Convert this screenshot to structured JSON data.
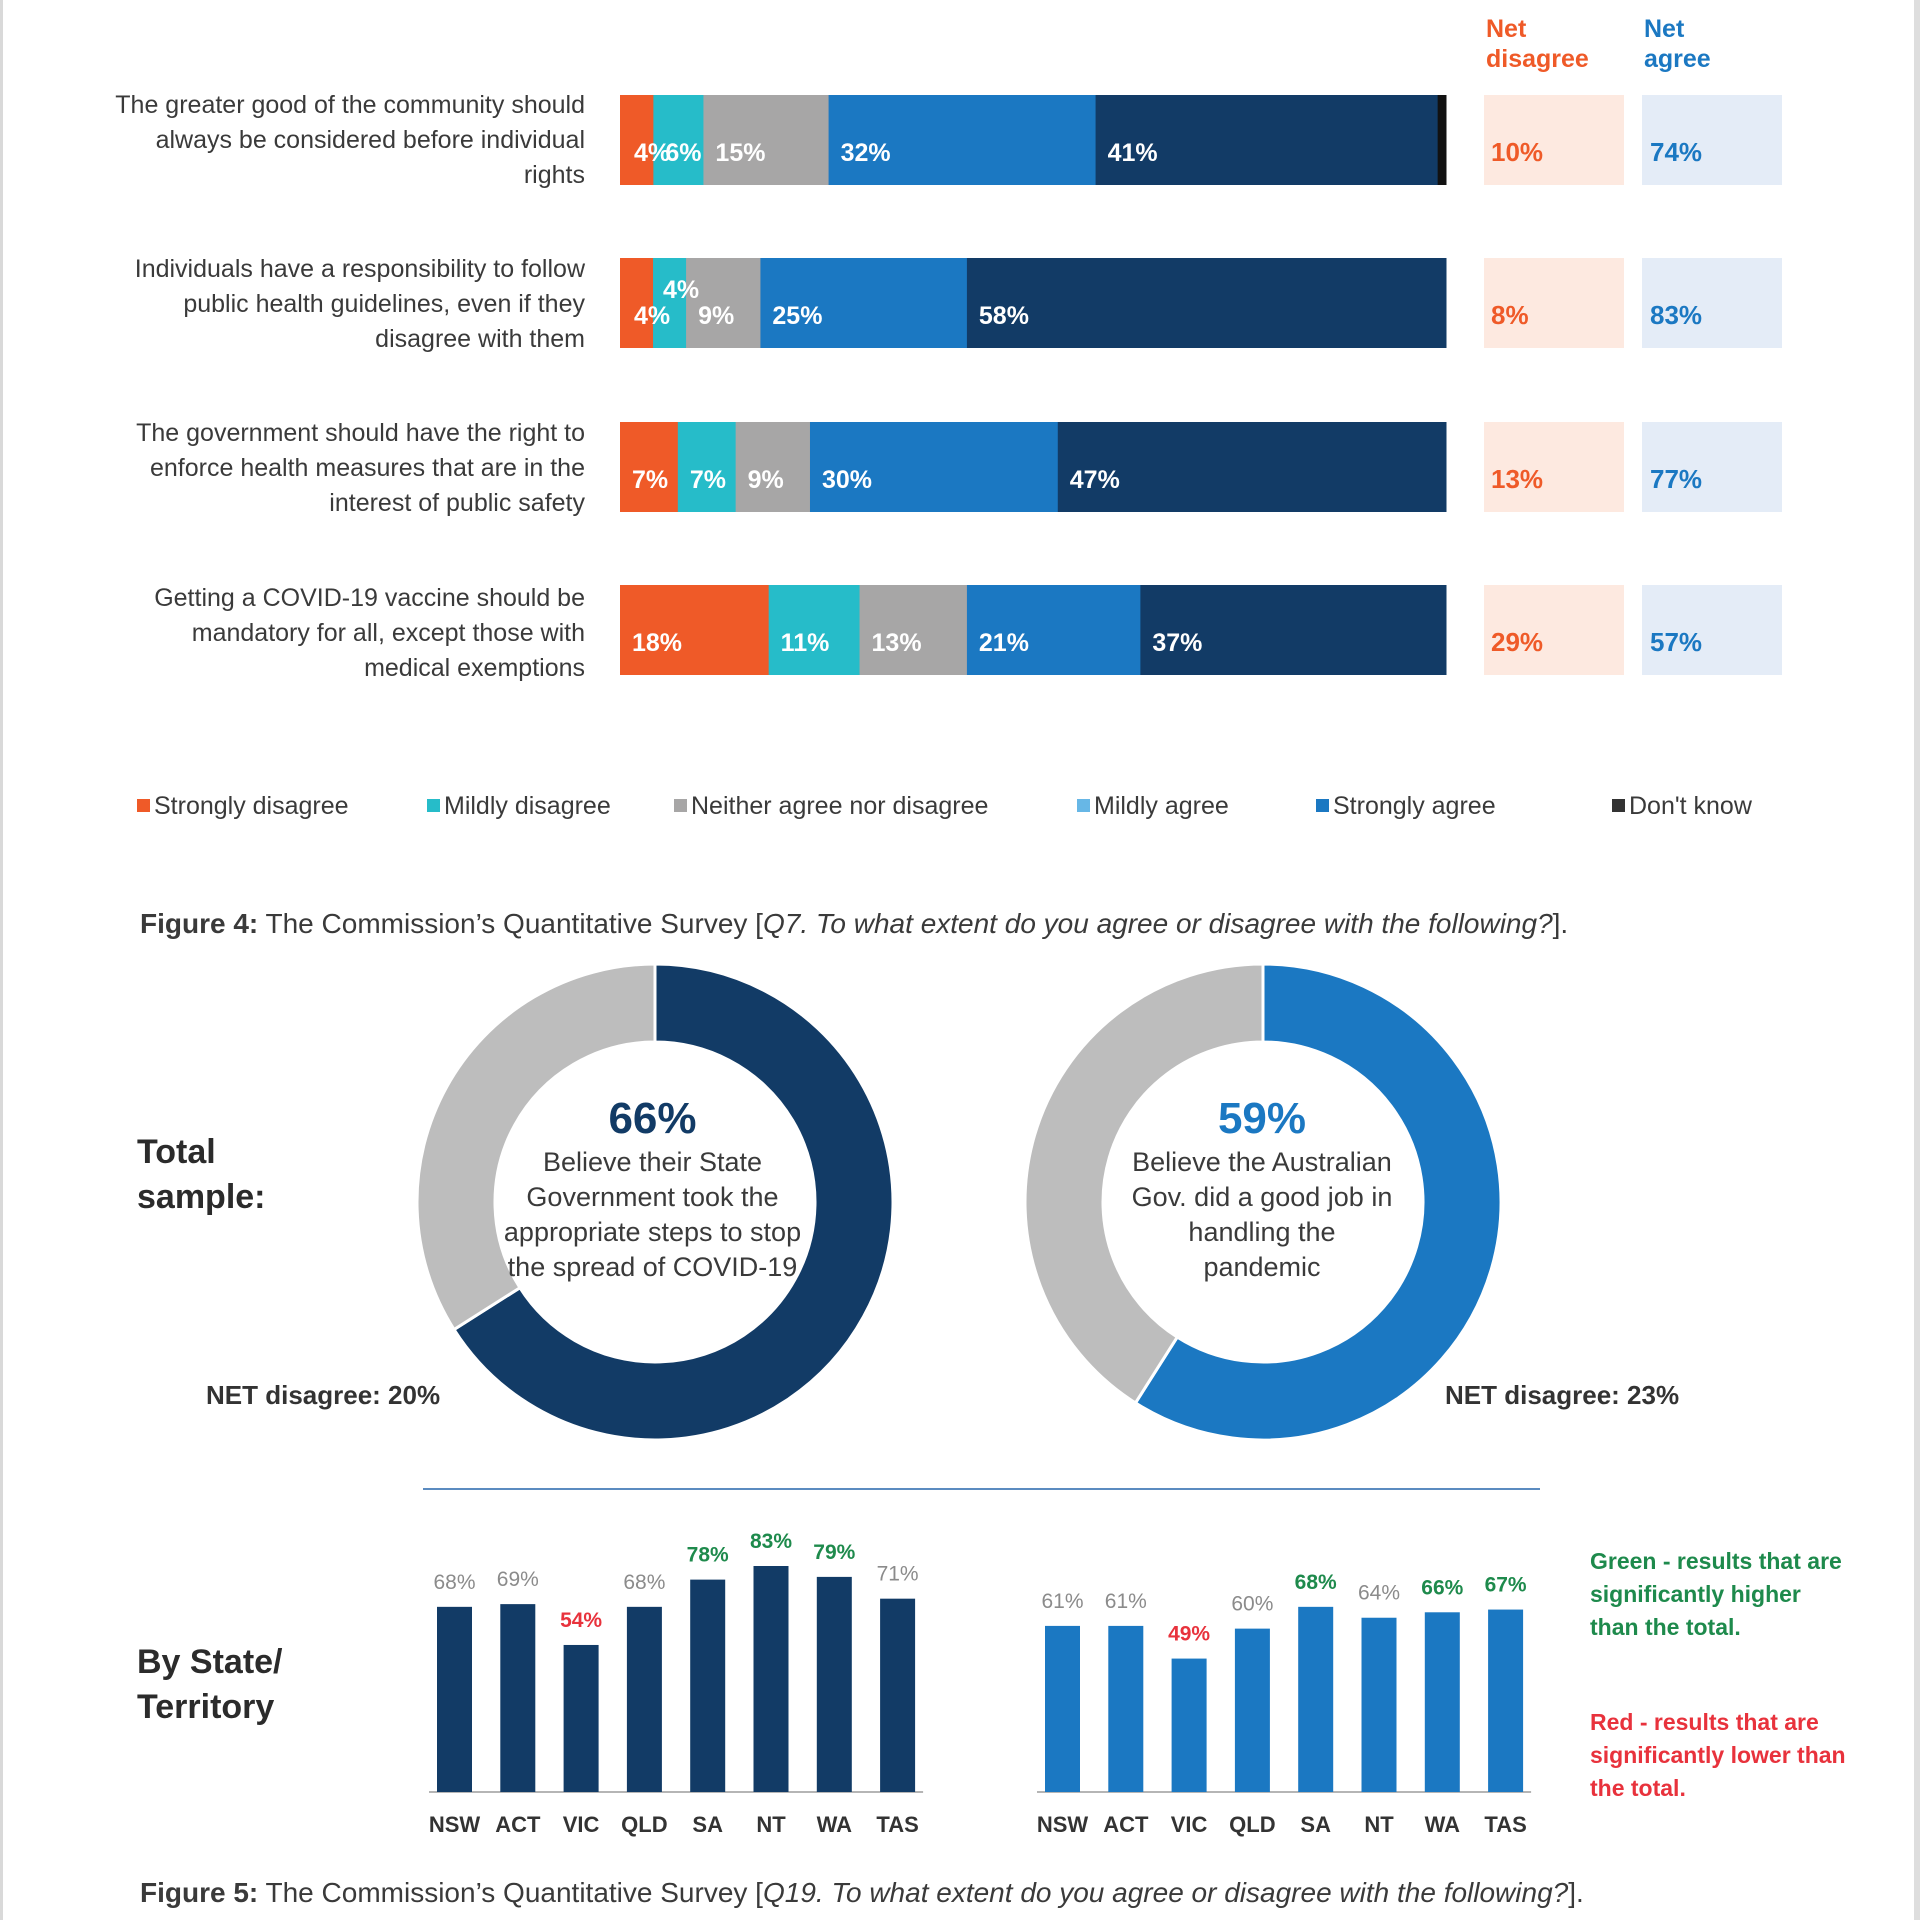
{
  "page": {
    "background": "#ffffff"
  },
  "colors": {
    "strongly_disagree": "#ef5a28",
    "mildly_disagree": "#26bcc9",
    "neither": "#a7a6a6",
    "mildly_agree": "#1b78c2",
    "strongly_agree": "#123b66",
    "dont_know": "#111111",
    "net_disagree_text": "#ef5a28",
    "net_disagree_bg": "#fde9e0",
    "net_agree_text": "#1b78c2",
    "net_agree_bg": "#e4ecf7",
    "donut_grey": "#bdbdbd",
    "green_sig": "#1e8a4c",
    "red_sig": "#e8323c",
    "bar_label_grey": "#8b8b8b",
    "divider": "#5b8bc0"
  },
  "figure4": {
    "net_disagree_header": "Net disagree",
    "net_agree_header": "Net agree",
    "caption_bold": "Figure 4:",
    "caption_text": " The Commission’s Quantitative Survey [",
    "caption_italic": "Q7. To what extent do you agree or disagree with the following?",
    "caption_end": "]."
  },
  "figure5": {
    "total_sample_label": "Total sample:",
    "by_state_label": "By State/ Territory",
    "donut1": {
      "pct": "66%",
      "text": "Believe their State Government took the appropriate steps to stop the spread of COVID-19",
      "net_disagree": "NET disagree: 20%"
    },
    "donut2": {
      "pct": "59%",
      "text": "Believe the Australian Gov. did a good job in handling the pandemic",
      "net_disagree": "NET disagree: 23%"
    },
    "note_green": "Green - results that are significantly higher than the total.",
    "note_red": "Red - results that are significantly lower than the total.",
    "caption_bold": "Figure 5:",
    "caption_text": " The Commission’s Quantitative Survey [",
    "caption_italic": "Q19. To what extent do you agree or disagree with the following?",
    "caption_end": "]."
  },
  "chart_data": [
    {
      "type": "bar",
      "orientation": "horizontal-stacked",
      "categories": [
        "The greater good of the community should always be considered before individual rights",
        "Individuals have a responsibility to follow public health guidelines, even if they disagree with them",
        "The government should have the right to enforce health measures that are in the interest of public safety",
        "Getting a COVID-19 vaccine should be mandatory for all, except those with medical exemptions"
      ],
      "series": [
        {
          "name": "Strongly disagree",
          "values": [
            4,
            4,
            7,
            18
          ],
          "labels": [
            "4%",
            "4%",
            "7%",
            "18%"
          ]
        },
        {
          "name": "Mildly disagree",
          "values": [
            6,
            4,
            7,
            11
          ],
          "labels": [
            "6%",
            "4%",
            "7%",
            "11%"
          ]
        },
        {
          "name": "Neither agree nor disagree",
          "values": [
            15,
            9,
            9,
            13
          ],
          "labels": [
            "15%",
            "9%",
            "9%",
            "13%"
          ]
        },
        {
          "name": "Mildly agree",
          "values": [
            32,
            25,
            30,
            21
          ],
          "labels": [
            "32%",
            "25%",
            "30%",
            "21%"
          ]
        },
        {
          "name": "Strongly agree",
          "values": [
            41,
            58,
            47,
            37
          ],
          "labels": [
            "41%",
            "58%",
            "47%",
            "37%"
          ]
        },
        {
          "name": "Don't know",
          "values": [
            1,
            0,
            0,
            0
          ],
          "labels": [
            "",
            "",
            "",
            ""
          ]
        }
      ],
      "net_disagree": [
        "10%",
        "8%",
        "13%",
        "29%"
      ],
      "net_agree": [
        "74%",
        "83%",
        "77%",
        "57%"
      ],
      "legend_position": "bottom"
    },
    {
      "type": "pie",
      "variant": "donut",
      "values": [
        66,
        34
      ],
      "center_label": "66%",
      "annotation": "NET disagree: 20%"
    },
    {
      "type": "pie",
      "variant": "donut",
      "values": [
        59,
        41
      ],
      "center_label": "59%",
      "annotation": "NET disagree: 23%"
    },
    {
      "type": "bar",
      "categories": [
        "NSW",
        "ACT",
        "VIC",
        "QLD",
        "SA",
        "NT",
        "WA",
        "TAS"
      ],
      "values": [
        68,
        69,
        54,
        68,
        78,
        83,
        79,
        71
      ],
      "labels": [
        "68%",
        "69%",
        "54%",
        "68%",
        "78%",
        "83%",
        "79%",
        "71%"
      ],
      "significance": [
        "none",
        "none",
        "lower",
        "none",
        "higher",
        "higher",
        "higher",
        "none"
      ]
    },
    {
      "type": "bar",
      "categories": [
        "NSW",
        "ACT",
        "VIC",
        "QLD",
        "SA",
        "NT",
        "WA",
        "TAS"
      ],
      "values": [
        61,
        61,
        49,
        60,
        68,
        64,
        66,
        67
      ],
      "labels": [
        "61%",
        "61%",
        "49%",
        "60%",
        "68%",
        "64%",
        "66%",
        "67%"
      ],
      "significance": [
        "none",
        "none",
        "lower",
        "none",
        "higher",
        "none",
        "higher",
        "higher"
      ]
    }
  ]
}
